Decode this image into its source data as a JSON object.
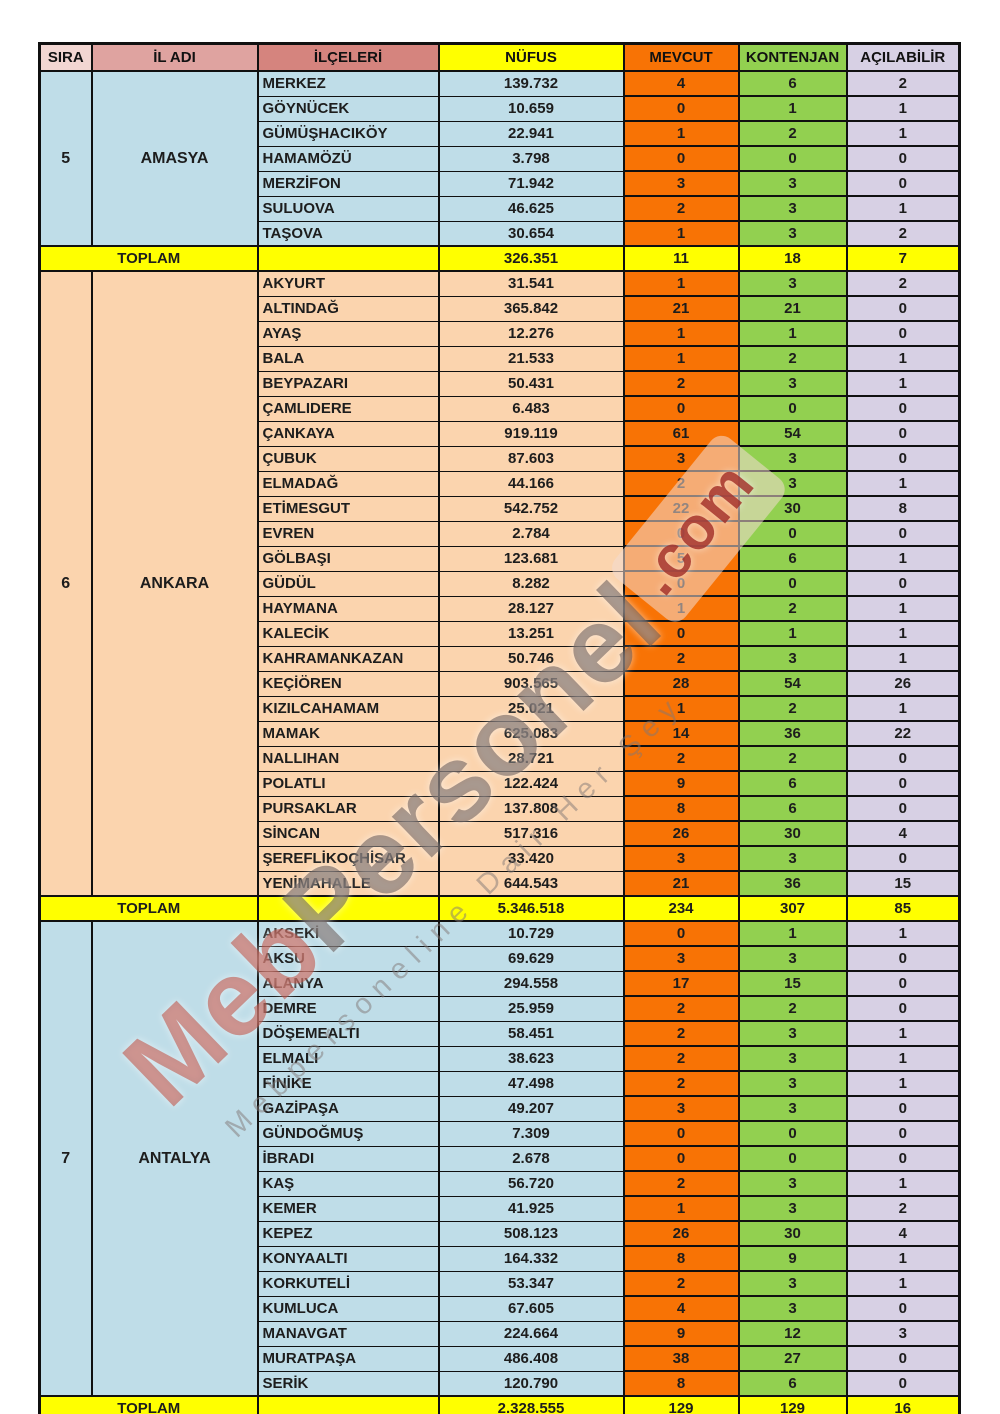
{
  "watermark": {
    "brand_prefix": "Meb",
    "brand_suffix": "Personel",
    "brand_tld": ".com",
    "tagline": "Mebpersoneline Dair Her Şey"
  },
  "table": {
    "headers": {
      "sira": "SIRA",
      "il_adi": "İL ADI",
      "ilceleri": "İLÇELERİ",
      "nufus": "NÜFUS",
      "mevcut": "MEVCUT",
      "kontenjan": "KONTENJAN",
      "acilabilir": "AÇILABİLİR"
    },
    "toplam_label": "TOPLAM",
    "colors": {
      "blue": "#BFDDE8",
      "peach": "#FBD4AE",
      "orange": "#F87305",
      "green": "#92D050",
      "lavender": "#D7D0E4",
      "yellow": "#FFFF00",
      "header_sira": "#F2D6D2",
      "header_il": "#DFA3A0",
      "header_ilce": "#D5847E"
    },
    "sections": [
      {
        "sira": "5",
        "il": "AMASYA",
        "theme": "blue",
        "rows": [
          [
            "MERKEZ",
            "139.732",
            "4",
            "6",
            "2"
          ],
          [
            "GÖYNÜCEK",
            "10.659",
            "0",
            "1",
            "1"
          ],
          [
            "GÜMÜŞHACIKÖY",
            "22.941",
            "1",
            "2",
            "1"
          ],
          [
            "HAMAMÖZÜ",
            "3.798",
            "0",
            "0",
            "0"
          ],
          [
            "MERZİFON",
            "71.942",
            "3",
            "3",
            "0"
          ],
          [
            "SULUOVA",
            "46.625",
            "2",
            "3",
            "1"
          ],
          [
            "TAŞOVA",
            "30.654",
            "1",
            "3",
            "2"
          ]
        ],
        "toplam": [
          "326.351",
          "11",
          "18",
          "7"
        ]
      },
      {
        "sira": "6",
        "il": "ANKARA",
        "theme": "peach",
        "rows": [
          [
            "AKYURT",
            "31.541",
            "1",
            "3",
            "2"
          ],
          [
            "ALTINDAĞ",
            "365.842",
            "21",
            "21",
            "0"
          ],
          [
            "AYAŞ",
            "12.276",
            "1",
            "1",
            "0"
          ],
          [
            "BALA",
            "21.533",
            "1",
            "2",
            "1"
          ],
          [
            "BEYPAZARI",
            "50.431",
            "2",
            "3",
            "1"
          ],
          [
            "ÇAMLIDERE",
            "6.483",
            "0",
            "0",
            "0"
          ],
          [
            "ÇANKAYA",
            "919.119",
            "61",
            "54",
            "0"
          ],
          [
            "ÇUBUK",
            "87.603",
            "3",
            "3",
            "0"
          ],
          [
            "ELMADAĞ",
            "44.166",
            "2",
            "3",
            "1"
          ],
          [
            "ETİMESGUT",
            "542.752",
            "22",
            "30",
            "8"
          ],
          [
            "EVREN",
            "2.784",
            "0",
            "0",
            "0"
          ],
          [
            "GÖLBAŞI",
            "123.681",
            "5",
            "6",
            "1"
          ],
          [
            "GÜDÜL",
            "8.282",
            "0",
            "0",
            "0"
          ],
          [
            "HAYMANA",
            "28.127",
            "1",
            "2",
            "1"
          ],
          [
            "KALECİK",
            "13.251",
            "0",
            "1",
            "1"
          ],
          [
            "KAHRAMANKAZAN",
            "50.746",
            "2",
            "3",
            "1"
          ],
          [
            "KEÇİÖREN",
            "903.565",
            "28",
            "54",
            "26"
          ],
          [
            "KIZILCAHAMAM",
            "25.021",
            "1",
            "2",
            "1"
          ],
          [
            "MAMAK",
            "625.083",
            "14",
            "36",
            "22"
          ],
          [
            "NALLIHAN",
            "28.721",
            "2",
            "2",
            "0"
          ],
          [
            "POLATLI",
            "122.424",
            "9",
            "6",
            "0"
          ],
          [
            "PURSAKLAR",
            "137.808",
            "8",
            "6",
            "0"
          ],
          [
            "SİNCAN",
            "517.316",
            "26",
            "30",
            "4"
          ],
          [
            "ŞEREFLİKOÇHİSAR",
            "33.420",
            "3",
            "3",
            "0"
          ],
          [
            "YENİMAHALLE",
            "644.543",
            "21",
            "36",
            "15"
          ]
        ],
        "toplam": [
          "5.346.518",
          "234",
          "307",
          "85"
        ]
      },
      {
        "sira": "7",
        "il": "ANTALYA",
        "theme": "blue",
        "rows": [
          [
            "AKSEKİ",
            "10.729",
            "0",
            "1",
            "1"
          ],
          [
            "AKSU",
            "69.629",
            "3",
            "3",
            "0"
          ],
          [
            "ALANYA",
            "294.558",
            "17",
            "15",
            "0"
          ],
          [
            "DEMRE",
            "25.959",
            "2",
            "2",
            "0"
          ],
          [
            "DÖŞEMEALTI",
            "58.451",
            "2",
            "3",
            "1"
          ],
          [
            "ELMALI",
            "38.623",
            "2",
            "3",
            "1"
          ],
          [
            "FİNİKE",
            "47.498",
            "2",
            "3",
            "1"
          ],
          [
            "GAZİPAŞA",
            "49.207",
            "3",
            "3",
            "0"
          ],
          [
            "GÜNDOĞMUŞ",
            "7.309",
            "0",
            "0",
            "0"
          ],
          [
            "İBRADI",
            "2.678",
            "0",
            "0",
            "0"
          ],
          [
            "KAŞ",
            "56.720",
            "2",
            "3",
            "1"
          ],
          [
            "KEMER",
            "41.925",
            "1",
            "3",
            "2"
          ],
          [
            "KEPEZ",
            "508.123",
            "26",
            "30",
            "4"
          ],
          [
            "KONYAALTI",
            "164.332",
            "8",
            "9",
            "1"
          ],
          [
            "KORKUTELİ",
            "53.347",
            "2",
            "3",
            "1"
          ],
          [
            "KUMLUCA",
            "67.605",
            "4",
            "3",
            "0"
          ],
          [
            "MANAVGAT",
            "224.664",
            "9",
            "12",
            "3"
          ],
          [
            "MURATPAŞA",
            "486.408",
            "38",
            "27",
            "0"
          ],
          [
            "SERİK",
            "120.790",
            "8",
            "6",
            "0"
          ]
        ],
        "toplam": [
          "2.328.555",
          "129",
          "129",
          "16"
        ]
      }
    ]
  }
}
